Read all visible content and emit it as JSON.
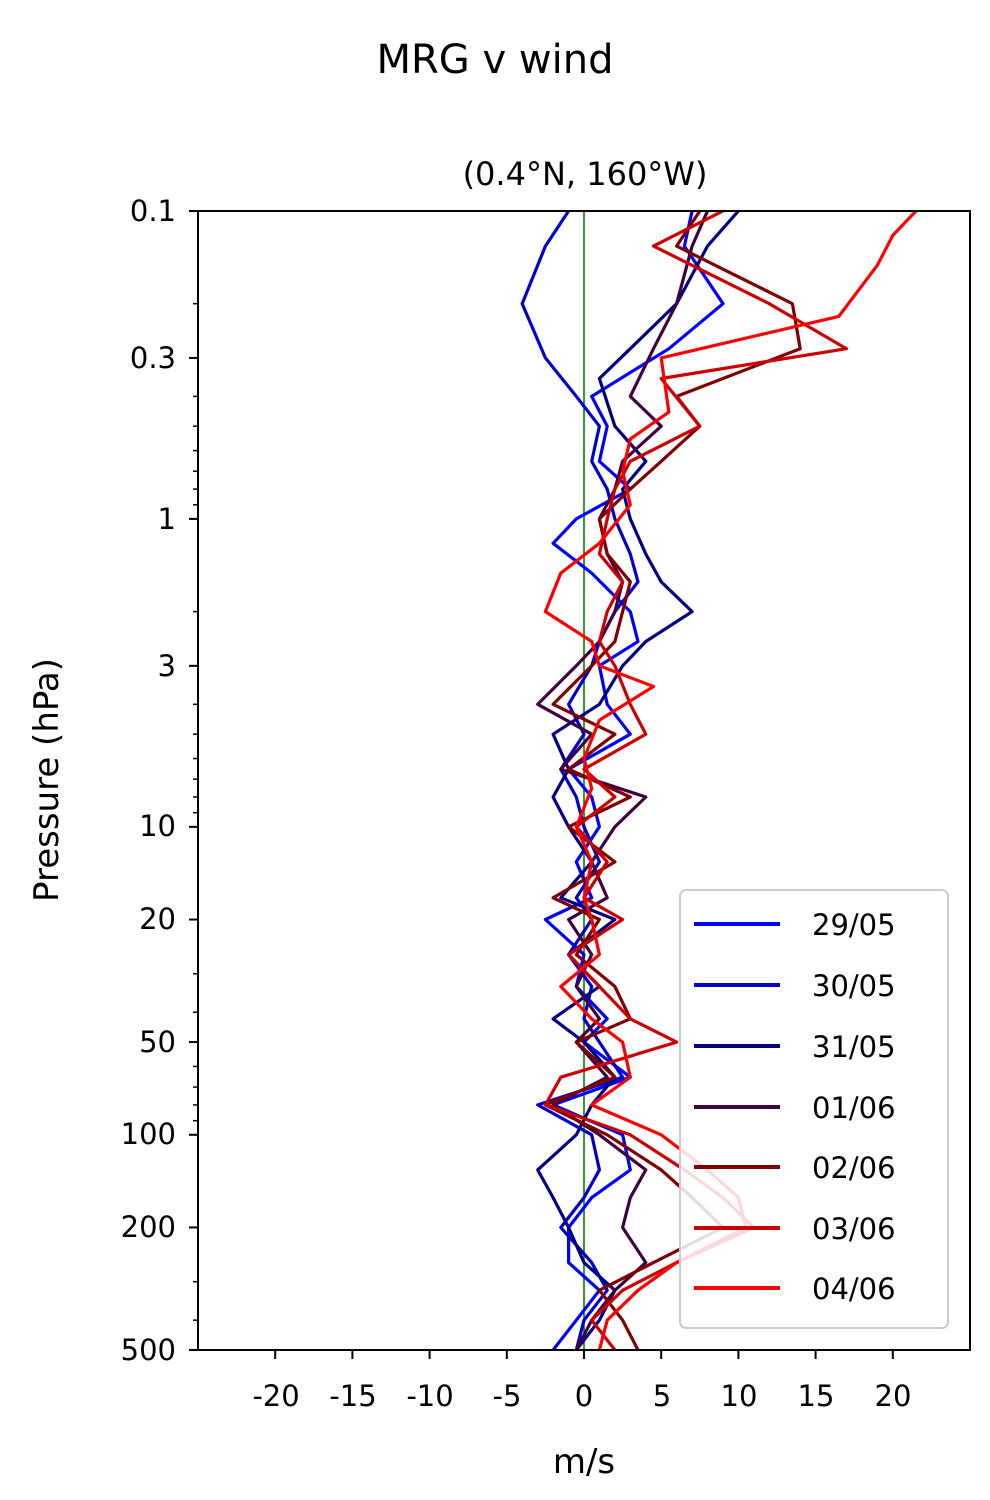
{
  "suptitle": "MRG v wind",
  "chart_data": {
    "type": "line",
    "title": "(0.4°N, 160°W)",
    "xlabel": "m/s",
    "ylabel": "Pressure (hPa)",
    "xlim": [
      -25,
      25
    ],
    "ylim": [
      500,
      0.1
    ],
    "yscale": "log",
    "xticks": [
      -20,
      -15,
      -10,
      -5,
      0,
      5,
      10,
      15,
      20
    ],
    "xtick_labels": [
      "-20",
      "-15",
      "-10",
      "-5",
      "0",
      "5",
      "10",
      "15",
      "20"
    ],
    "yticks": [
      0.1,
      0.3,
      1,
      3,
      10,
      20,
      50,
      100,
      200,
      500
    ],
    "ytick_labels": [
      "0.1",
      "0.3",
      "1",
      "3",
      "10",
      "20",
      "50",
      "100",
      "200",
      "500"
    ],
    "zero_line_color": "#008000",
    "legend_position": "lower right",
    "series": [
      {
        "name": "29/05",
        "color": "#0000ff",
        "y": [
          0.1,
          0.13,
          0.2,
          0.28,
          0.4,
          0.5,
          0.65,
          0.8,
          1.0,
          1.2,
          1.5,
          2.0,
          2.5,
          3.0,
          4.0,
          5.0,
          6.5,
          8.0,
          10,
          13,
          17,
          20,
          26,
          33,
          42,
          50,
          65,
          80,
          100,
          130,
          160,
          200,
          260,
          320,
          400,
          500
        ],
        "values": [
          7.0,
          6.5,
          9.0,
          5.5,
          0.5,
          1.5,
          1.0,
          3.0,
          -0.5,
          -2.0,
          0.5,
          3.0,
          3.5,
          1.0,
          1.5,
          3.0,
          -1.0,
          0.5,
          1.0,
          -0.5,
          0.5,
          -2.5,
          0.0,
          -0.5,
          1.5,
          0.0,
          3.0,
          -2.0,
          2.5,
          3.0,
          0.5,
          -1.0,
          -1.0,
          1.0,
          -0.5,
          -2.0
        ]
      },
      {
        "name": "30/05",
        "color": "#0000cc",
        "y": [
          0.1,
          0.13,
          0.2,
          0.3,
          0.4,
          0.5,
          0.65,
          0.8,
          1.0,
          1.3,
          1.6,
          2.0,
          2.5,
          3.0,
          4.0,
          5.0,
          6.5,
          8.0,
          10,
          13,
          17,
          20,
          26,
          33,
          42,
          50,
          65,
          80,
          100,
          130,
          160,
          200,
          260,
          320,
          400,
          500
        ],
        "values": [
          -1.0,
          -2.5,
          -4.0,
          -2.5,
          -0.5,
          1.0,
          0.5,
          1.5,
          2.0,
          3.0,
          3.5,
          2.0,
          1.0,
          0.5,
          -1.0,
          0.0,
          -1.5,
          -0.5,
          0.0,
          1.0,
          -0.5,
          0.5,
          -1.0,
          0.5,
          0.0,
          1.0,
          2.5,
          -3.0,
          0.5,
          1.0,
          0.0,
          -1.5,
          0.5,
          1.5,
          0.0,
          -0.5
        ]
      },
      {
        "name": "31/05",
        "color": "#000080",
        "y": [
          0.1,
          0.13,
          0.2,
          0.28,
          0.35,
          0.5,
          0.65,
          0.8,
          1.0,
          1.3,
          1.6,
          2.0,
          2.5,
          3.0,
          4.0,
          5.0,
          6.5,
          8.0,
          10,
          13,
          17,
          20,
          26,
          33,
          42,
          50,
          65,
          80,
          100,
          130,
          160,
          200,
          260,
          320,
          400,
          500
        ],
        "values": [
          10.0,
          8.0,
          6.0,
          3.0,
          1.0,
          2.0,
          4.0,
          2.5,
          3.0,
          4.0,
          5.0,
          7.0,
          4.0,
          2.5,
          1.0,
          -2.0,
          -1.0,
          -2.0,
          -1.0,
          0.5,
          -1.5,
          2.0,
          -1.0,
          1.0,
          -2.0,
          0.0,
          2.0,
          0.5,
          -0.5,
          -3.0,
          -2.0,
          -1.0,
          0.0,
          2.0,
          1.0,
          -0.5
        ]
      },
      {
        "name": "01/06",
        "color": "#400040",
        "y": [
          0.1,
          0.13,
          0.2,
          0.28,
          0.4,
          0.5,
          0.65,
          0.8,
          1.0,
          1.3,
          1.6,
          2.0,
          2.5,
          3.0,
          4.0,
          5.0,
          6.5,
          8.0,
          10,
          13,
          17,
          20,
          26,
          33,
          42,
          50,
          65,
          80,
          100,
          130,
          160,
          200,
          260,
          320,
          400,
          500
        ],
        "values": [
          8.0,
          7.0,
          6.0,
          4.5,
          3.0,
          5.0,
          2.5,
          2.0,
          1.0,
          1.5,
          2.5,
          2.0,
          1.0,
          -0.5,
          -3.0,
          0.5,
          -1.5,
          4.0,
          2.0,
          0.5,
          1.5,
          -1.0,
          0.5,
          -0.5,
          1.0,
          -0.5,
          1.5,
          -2.0,
          1.0,
          4.0,
          3.0,
          2.5,
          4.0,
          2.0,
          0.5,
          -0.5
        ]
      },
      {
        "name": "02/06",
        "color": "#800000",
        "y": [
          0.1,
          0.13,
          0.2,
          0.28,
          0.4,
          0.5,
          0.65,
          0.8,
          1.0,
          1.3,
          1.6,
          2.0,
          2.5,
          3.0,
          4.0,
          5.0,
          6.5,
          8.0,
          10,
          13,
          17,
          20,
          26,
          33,
          42,
          50,
          65,
          80,
          100,
          130,
          160,
          200,
          260,
          320,
          400,
          500
        ],
        "values": [
          7.5,
          6.0,
          13.5,
          14.0,
          6.0,
          7.5,
          5.0,
          3.0,
          1.0,
          1.5,
          3.0,
          2.5,
          2.0,
          0.5,
          -2.0,
          2.0,
          -1.0,
          3.0,
          -1.0,
          2.0,
          -2.0,
          1.0,
          -0.5,
          2.0,
          3.0,
          -0.5,
          2.0,
          -2.5,
          1.5,
          5.0,
          7.0,
          9.0,
          4.5,
          1.0,
          2.5,
          3.5
        ]
      },
      {
        "name": "03/06",
        "color": "#cc0000",
        "y": [
          0.1,
          0.13,
          0.2,
          0.28,
          0.35,
          0.5,
          0.65,
          0.8,
          1.0,
          1.3,
          1.6,
          2.0,
          2.5,
          3.0,
          4.0,
          5.0,
          6.5,
          8.0,
          10,
          13,
          17,
          20,
          26,
          33,
          42,
          50,
          65,
          80,
          100,
          130,
          160,
          200,
          260,
          320,
          400,
          500
        ],
        "values": [
          9.0,
          4.5,
          12.0,
          17.0,
          5.0,
          7.5,
          3.0,
          2.0,
          1.5,
          1.0,
          2.5,
          1.5,
          1.0,
          2.0,
          3.0,
          4.0,
          0.0,
          2.0,
          -0.5,
          1.5,
          0.0,
          2.5,
          -1.0,
          1.0,
          3.0,
          6.0,
          -1.5,
          -2.5,
          3.0,
          6.5,
          9.0,
          11.0,
          6.0,
          2.5,
          0.5,
          2.0
        ]
      },
      {
        "name": "04/06",
        "color": "#ff0000",
        "y": [
          0.1,
          0.12,
          0.15,
          0.22,
          0.3,
          0.45,
          0.55,
          0.7,
          0.9,
          1.2,
          1.5,
          2.0,
          2.5,
          3.0,
          3.5,
          4.5,
          6.0,
          7.5,
          10,
          13,
          17,
          20,
          26,
          33,
          42,
          50,
          65,
          80,
          100,
          130,
          160,
          200,
          260,
          320,
          400,
          500
        ],
        "values": [
          21.5,
          20.0,
          19.0,
          16.5,
          5.0,
          5.5,
          3.0,
          2.5,
          3.0,
          1.0,
          -1.5,
          -2.5,
          0.5,
          1.0,
          4.5,
          1.0,
          0.0,
          0.5,
          -0.5,
          0.5,
          0.0,
          0.5,
          1.0,
          -1.5,
          0.5,
          2.5,
          3.0,
          0.5,
          5.0,
          8.0,
          10.0,
          10.5,
          6.0,
          3.5,
          1.5,
          1.0
        ]
      }
    ]
  }
}
